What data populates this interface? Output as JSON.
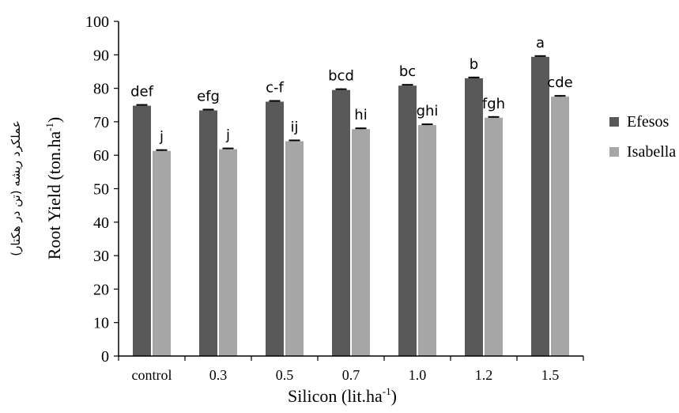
{
  "chart_data": {
    "type": "bar",
    "categories": [
      "control",
      "0.3",
      "0.5",
      "0.7",
      "1.0",
      "1.2",
      "1.5"
    ],
    "series": [
      {
        "name": "Efesos",
        "color": "#595959",
        "values": [
          74.8,
          73.4,
          76.0,
          79.5,
          80.8,
          83.0,
          89.4
        ],
        "letters": [
          "def",
          "efg",
          "c-f",
          "bcd",
          "bc",
          "b",
          "a"
        ]
      },
      {
        "name": "Isabella",
        "color": "#a6a6a6",
        "values": [
          61.3,
          61.8,
          64.2,
          67.8,
          69.0,
          71.2,
          77.5
        ],
        "letters": [
          "j",
          "j",
          "ij",
          "hi",
          "ghi",
          "fgh",
          "cde"
        ]
      }
    ],
    "xlabel": "Silicon (lit.ha",
    "xlabel_sup": "-1",
    "xlabel_end": ")",
    "ylabel": "Root Yield (ton.ha",
    "ylabel_sup": "-1",
    "ylabel_end": ")",
    "ylabel_persian": "عملکرد ریشه (تن در هکتار)",
    "ylim": [
      0,
      100
    ],
    "yticks": [
      "0",
      "10",
      "20",
      "30",
      "40",
      "50",
      "60",
      "70",
      "80",
      "90",
      "100"
    ],
    "grid": false,
    "legend_position": "right"
  }
}
